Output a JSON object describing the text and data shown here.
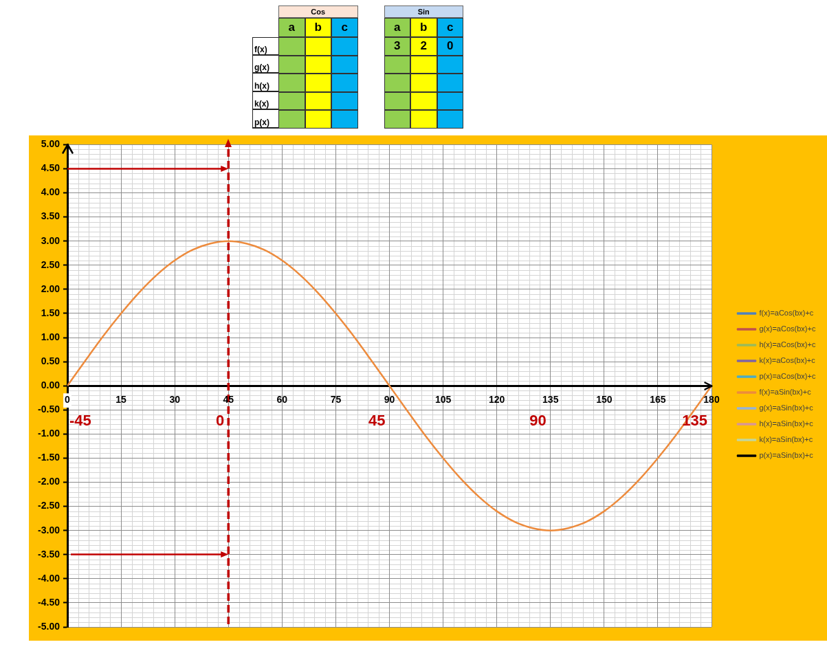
{
  "chart_data": [
    {
      "type": "other",
      "annotations": [
        "Cos",
        "Sin"
      ],
      "categories": [
        "a",
        "b",
        "c",
        "a",
        "b",
        "c"
      ],
      "y_categories": [
        "f(x)",
        "g(x)",
        "h(x)",
        "k(x)",
        "p(x)"
      ],
      "cell_labels": [
        [
          null,
          null,
          null,
          "3",
          "2",
          "0"
        ],
        [
          null,
          null,
          null,
          null,
          null,
          null
        ],
        [
          null,
          null,
          null,
          null,
          null,
          null
        ],
        [
          null,
          null,
          null,
          null,
          null,
          null
        ],
        [
          null,
          null,
          null,
          null,
          null,
          null
        ]
      ],
      "colors": [
        "#92d050",
        "#ffff00",
        "#00b0f0",
        "#92d050",
        "#ffff00",
        "#00b0f0"
      ]
    },
    {
      "type": "line",
      "x": [
        0,
        5,
        10,
        15,
        20,
        25,
        30,
        35,
        40,
        45,
        50,
        55,
        60,
        65,
        70,
        75,
        80,
        85,
        90,
        95,
        100,
        105,
        110,
        115,
        120,
        125,
        130,
        135,
        140,
        145,
        150,
        155,
        160,
        165,
        170,
        175,
        180
      ],
      "series": [
        {
          "name": "f(x)=aCos(bx)+c",
          "color": "#4f81bd",
          "values": [
            null,
            null,
            null,
            null,
            null,
            null,
            null,
            null,
            null,
            null,
            null,
            null,
            null,
            null,
            null,
            null,
            null,
            null,
            null,
            null,
            null,
            null,
            null,
            null,
            null,
            null,
            null,
            null,
            null,
            null,
            null,
            null,
            null,
            null,
            null,
            null,
            null
          ]
        },
        {
          "name": "g(x)=aCos(bx)+c",
          "color": "#c0504d",
          "values": [
            null,
            null,
            null,
            null,
            null,
            null,
            null,
            null,
            null,
            null,
            null,
            null,
            null,
            null,
            null,
            null,
            null,
            null,
            null,
            null,
            null,
            null,
            null,
            null,
            null,
            null,
            null,
            null,
            null,
            null,
            null,
            null,
            null,
            null,
            null,
            null,
            null
          ]
        },
        {
          "name": "h(x)=aCos(bx)+c",
          "color": "#9bbb59",
          "values": [
            null,
            null,
            null,
            null,
            null,
            null,
            null,
            null,
            null,
            null,
            null,
            null,
            null,
            null,
            null,
            null,
            null,
            null,
            null,
            null,
            null,
            null,
            null,
            null,
            null,
            null,
            null,
            null,
            null,
            null,
            null,
            null,
            null,
            null,
            null,
            null,
            null
          ]
        },
        {
          "name": "k(x)=aCos(bx)+c",
          "color": "#8064a2",
          "values": [
            null,
            null,
            null,
            null,
            null,
            null,
            null,
            null,
            null,
            null,
            null,
            null,
            null,
            null,
            null,
            null,
            null,
            null,
            null,
            null,
            null,
            null,
            null,
            null,
            null,
            null,
            null,
            null,
            null,
            null,
            null,
            null,
            null,
            null,
            null,
            null,
            null
          ]
        },
        {
          "name": "p(x)=aCos(bx)+c",
          "color": "#4bacc6",
          "values": [
            null,
            null,
            null,
            null,
            null,
            null,
            null,
            null,
            null,
            null,
            null,
            null,
            null,
            null,
            null,
            null,
            null,
            null,
            null,
            null,
            null,
            null,
            null,
            null,
            null,
            null,
            null,
            null,
            null,
            null,
            null,
            null,
            null,
            null,
            null,
            null,
            null
          ]
        },
        {
          "name": "f(x)=aSin(bx)+c",
          "color": "#ed8b3d",
          "values": [
            0,
            0.52,
            1.03,
            1.5,
            1.93,
            2.3,
            2.6,
            2.82,
            2.95,
            3,
            2.95,
            2.82,
            2.6,
            2.3,
            1.93,
            1.5,
            1.03,
            0.52,
            0,
            -0.52,
            -1.03,
            -1.5,
            -1.93,
            -2.3,
            -2.6,
            -2.82,
            -2.95,
            -3,
            -2.95,
            -2.82,
            -2.6,
            -2.3,
            -1.93,
            -1.5,
            -1.03,
            -0.52,
            0
          ]
        },
        {
          "name": "g(x)=aSin(bx)+c",
          "color": "#95b3d7",
          "values": [
            null,
            null,
            null,
            null,
            null,
            null,
            null,
            null,
            null,
            null,
            null,
            null,
            null,
            null,
            null,
            null,
            null,
            null,
            null,
            null,
            null,
            null,
            null,
            null,
            null,
            null,
            null,
            null,
            null,
            null,
            null,
            null,
            null,
            null,
            null,
            null,
            null
          ]
        },
        {
          "name": "h(x)=aSin(bx)+c",
          "color": "#d99694",
          "values": [
            null,
            null,
            null,
            null,
            null,
            null,
            null,
            null,
            null,
            null,
            null,
            null,
            null,
            null,
            null,
            null,
            null,
            null,
            null,
            null,
            null,
            null,
            null,
            null,
            null,
            null,
            null,
            null,
            null,
            null,
            null,
            null,
            null,
            null,
            null,
            null,
            null
          ]
        },
        {
          "name": "k(x)=aSin(bx)+c",
          "color": "#c3d69b",
          "values": [
            null,
            null,
            null,
            null,
            null,
            null,
            null,
            null,
            null,
            null,
            null,
            null,
            null,
            null,
            null,
            null,
            null,
            null,
            null,
            null,
            null,
            null,
            null,
            null,
            null,
            null,
            null,
            null,
            null,
            null,
            null,
            null,
            null,
            null,
            null,
            null,
            null
          ]
        },
        {
          "name": "p(x)=aSin(bx)+c",
          "color": "#000000",
          "values": [
            null,
            null,
            null,
            null,
            null,
            null,
            null,
            null,
            null,
            null,
            null,
            null,
            null,
            null,
            null,
            null,
            null,
            null,
            null,
            null,
            null,
            null,
            null,
            null,
            null,
            null,
            null,
            null,
            null,
            null,
            null,
            null,
            null,
            null,
            null,
            null,
            null
          ]
        }
      ],
      "xlim": [
        0,
        180
      ],
      "xticks": [
        0,
        15,
        30,
        45,
        60,
        75,
        90,
        105,
        120,
        135,
        150,
        165,
        180
      ],
      "ylim": [
        -5,
        5
      ],
      "yticks": [
        {
          "value": -5,
          "label": "-5.00"
        },
        {
          "value": -4.5,
          "label": "-4.50"
        },
        {
          "value": -4,
          "label": "-4.00"
        },
        {
          "value": -3.5,
          "label": "-3.50"
        },
        {
          "value": -3,
          "label": "-3.00"
        },
        {
          "value": -2.5,
          "label": "-2.50"
        },
        {
          "value": -2,
          "label": "-2.00"
        },
        {
          "value": -1.5,
          "label": "-1.50"
        },
        {
          "value": -1,
          "label": "-1.00"
        },
        {
          "value": -0.5,
          "label": "-0.50"
        },
        {
          "value": 0,
          "label": "0.00"
        },
        {
          "value": 0.5,
          "label": "0.50"
        },
        {
          "value": 1,
          "label": "1.00"
        },
        {
          "value": 1.5,
          "label": "1.50"
        },
        {
          "value": 2,
          "label": "2.00"
        },
        {
          "value": 2.5,
          "label": "2.50"
        },
        {
          "value": 3,
          "label": "3.00"
        },
        {
          "value": 3.5,
          "label": "3.50"
        },
        {
          "value": 4,
          "label": "4.00"
        },
        {
          "value": 4.5,
          "label": "4.50"
        },
        {
          "value": 5,
          "label": "5.00"
        }
      ],
      "grid": true,
      "legend": "right",
      "ref_lines": [
        {
          "axis": "x",
          "value": 45,
          "color": "#c00000",
          "line_style": "dashed"
        }
      ],
      "annotations": [
        "-45",
        "0",
        "45",
        "90",
        "135"
      ]
    }
  ]
}
